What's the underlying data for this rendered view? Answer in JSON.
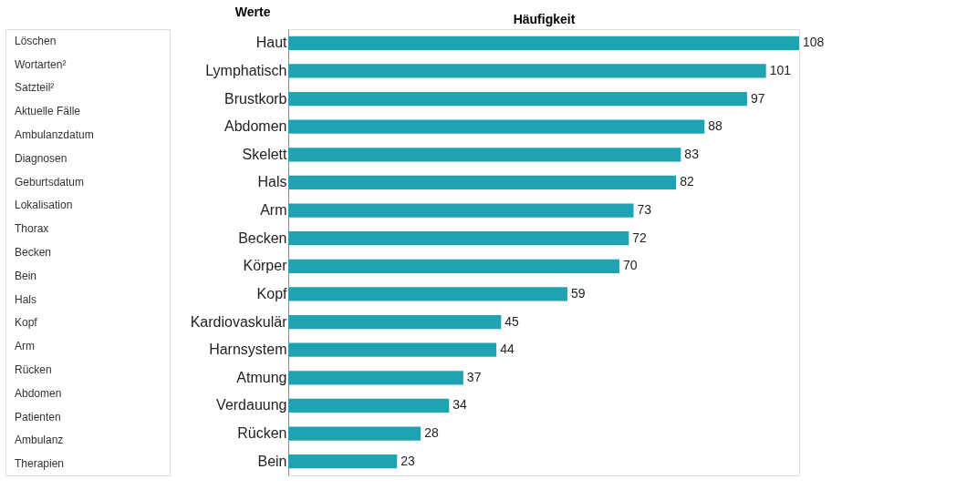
{
  "chart_data": {
    "type": "bar",
    "orientation": "horizontal",
    "xlabel": "Häufigkeit",
    "ylabel": "Werte",
    "categories": [
      "Haut",
      "Lymphatisch",
      "Brustkorb",
      "Abdomen",
      "Skelett",
      "Hals",
      "Arm",
      "Becken",
      "Körper",
      "Kopf",
      "Kardiovaskulär",
      "Harnsystem",
      "Atmung",
      "Verdauung",
      "Rücken",
      "Bein"
    ],
    "values": [
      108,
      101,
      97,
      88,
      83,
      82,
      73,
      72,
      70,
      59,
      45,
      44,
      37,
      34,
      28,
      23
    ],
    "color": "#1fa3b3",
    "data_labels": true,
    "tick_labels": "y",
    "grid": false,
    "annotations": [
      "Löschen",
      "Wortarten²",
      "Satzteil²",
      "Aktuelle Fälle",
      "Ambulanzdatum",
      "Diagnosen",
      "Geburtsdatum",
      "Lokalisation",
      "Thorax",
      "Becken",
      "Bein",
      "Hals",
      "Kopf",
      "Arm",
      "Rücken",
      "Abdomen",
      "Patienten",
      "Ambulanz",
      "Therapien"
    ]
  }
}
